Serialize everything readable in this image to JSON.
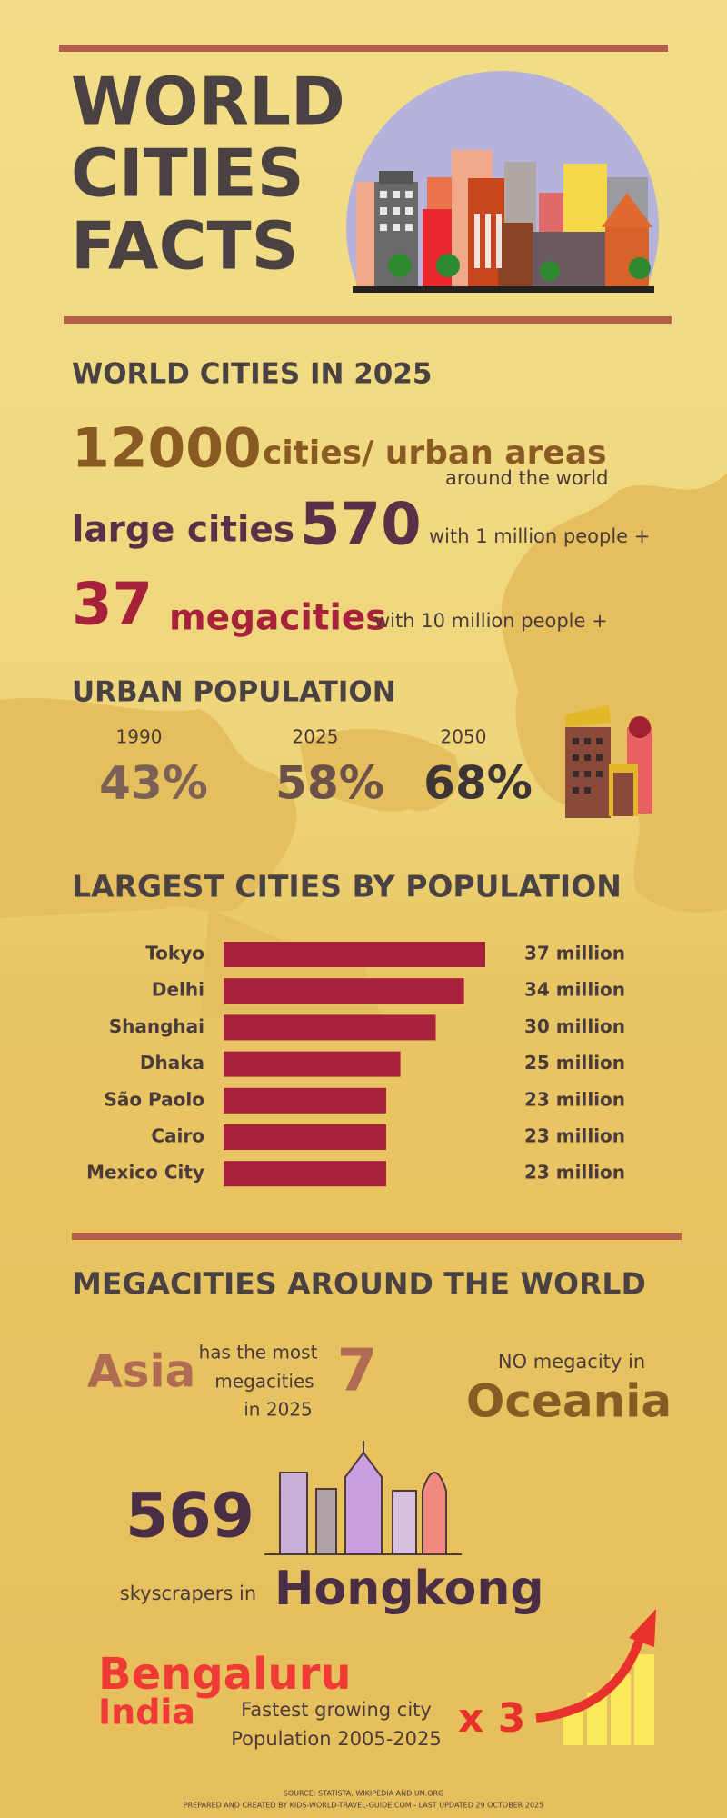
{
  "header": {
    "title_lines": [
      "WORLD",
      "CITIES",
      "FACTS"
    ]
  },
  "cities_2025": {
    "heading": "WORLD CITIES IN 2025",
    "cities_number": "12000",
    "cities_label": "cities/ urban areas",
    "cities_note": "around the world",
    "large_label": "large cities",
    "large_number": "570",
    "large_note": "with 1 million people +",
    "mega_number": "37",
    "mega_label": "megacities",
    "mega_note": "with 10 million people +"
  },
  "urban_population": {
    "heading": "URBAN POPULATION",
    "items": [
      {
        "year": "1990",
        "share": "43%"
      },
      {
        "year": "2025",
        "share": "58%"
      },
      {
        "year": "2050",
        "share": "68%"
      }
    ]
  },
  "chart_data": {
    "type": "bar",
    "title": "LARGEST CITIES BY POPULATION",
    "categories": [
      "Tokyo",
      "Delhi",
      "Shanghai",
      "Dhaka",
      "São Paolo",
      "Cairo",
      "Mexico City"
    ],
    "values": [
      37,
      34,
      30,
      25,
      23,
      23,
      23
    ],
    "value_labels": [
      "37 million",
      "34 million",
      "30 million",
      "25 million",
      "23 million",
      "23 million",
      "23 million"
    ],
    "color": "#a8213a"
  },
  "megacities": {
    "heading": "MEGACITIES AROUND THE WORLD",
    "asia": "Asia",
    "asia_note_lines": [
      "has the most",
      "megacities",
      "in 2025"
    ],
    "asia_count": "7",
    "oceania_note": "NO megacity in",
    "oceania": "Oceania",
    "skyscrapers_number": "569",
    "skyscrapers_note": "skyscrapers in",
    "hongkong": "Hongkong",
    "bengaluru": "Bengaluru",
    "india": "India",
    "growth_note_lines": [
      "Fastest growing city",
      "Population 2005-2025"
    ],
    "growth_factor": "x 3"
  },
  "footer": {
    "source": "SOURCE: STATISTA, WIKIPEDIA AND UN.ORG",
    "credit": "PREPARED AND CREATED BY KIDS-WORLD-TRAVEL-GUIDE.COM - LAST UPDATED 29 OCTOBER 2025"
  }
}
